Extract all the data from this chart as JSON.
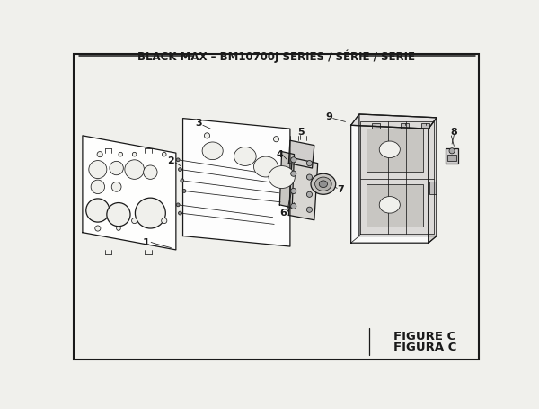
{
  "title": "BLACK MAX – BM10700J SERIES / SÉRIE / SERIE",
  "figure_label": "FIGURE C",
  "figura_label": "FIGURA C",
  "bg_color": "#f0f0ec",
  "line_color": "#1a1a1a",
  "title_fontsize": 8.5,
  "label_fontsize": 8.0,
  "figure_label_fontsize": 9.5
}
